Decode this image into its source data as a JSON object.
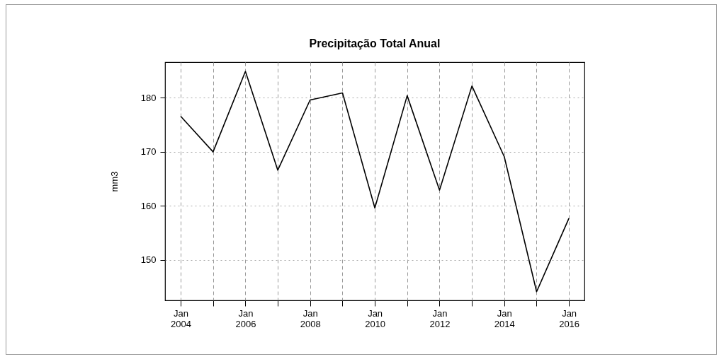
{
  "chart_data": {
    "type": "line",
    "title": "Precipitação Total Anual",
    "ylabel": "mm3",
    "x": [
      "2004-01",
      "2005-01",
      "2006-01",
      "2007-01",
      "2008-01",
      "2009-01",
      "2010-01",
      "2011-01",
      "2012-01",
      "2013-01",
      "2014-01",
      "2015-01",
      "2016-01"
    ],
    "series": [
      {
        "color": "#000000",
        "values": [
          176.6,
          170,
          184.9,
          166.6,
          179.6,
          180.9,
          159.6,
          180.4,
          162.9,
          182.2,
          169.1,
          144.1,
          157.7
        ]
      }
    ],
    "xlim": [
      "2003-07-09",
      "2016-06-24"
    ],
    "xticks": [
      {
        "value": "2004-01",
        "label": "Jan 2004"
      },
      {
        "value": "2005-01",
        "label": null
      },
      {
        "value": "2006-01",
        "label": "Jan 2006"
      },
      {
        "value": "2007-01",
        "label": null
      },
      {
        "value": "2008-01",
        "label": "Jan 2008"
      },
      {
        "value": "2009-01",
        "label": null
      },
      {
        "value": "2010-01",
        "label": "Jan 2010"
      },
      {
        "value": "2011-01",
        "label": null
      },
      {
        "value": "2012-01",
        "label": "Jan 2012"
      },
      {
        "value": "2013-01",
        "label": null
      },
      {
        "value": "2014-01",
        "label": "Jan 2014"
      },
      {
        "value": "2015-01",
        "label": null
      },
      {
        "value": "2016-01",
        "label": "Jan 2016"
      }
    ],
    "ylim": [
      142.5,
      186.6
    ],
    "yticks": [
      150,
      160,
      170,
      180
    ],
    "grid": true
  }
}
